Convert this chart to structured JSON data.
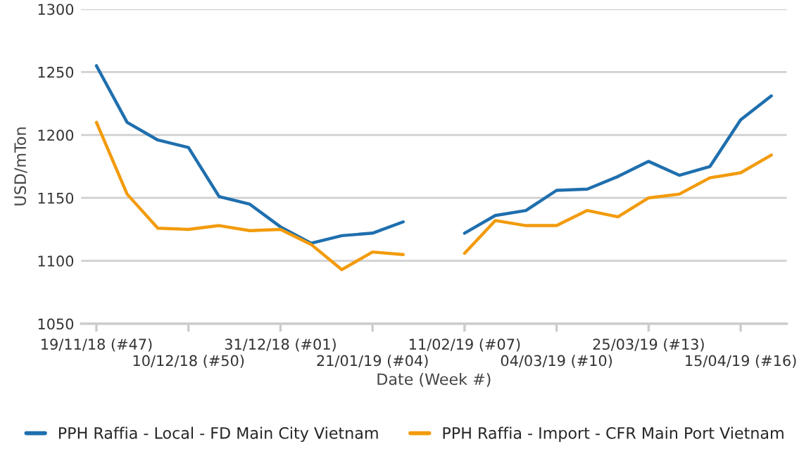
{
  "chart_data": {
    "type": "line",
    "xlabel": "Date (Week #)",
    "ylabel": "USD/mTon",
    "categories": [
      "19/11/18 (#47)",
      null,
      null,
      "10/12/18 (#50)",
      null,
      null,
      "31/12/18 (#01)",
      null,
      null,
      "21/01/19 (#04)",
      null,
      null,
      "11/02/19 (#07)",
      null,
      null,
      "04/03/19 (#10)",
      null,
      null,
      "25/03/19 (#13)",
      null,
      null,
      "15/04/19 (#16)",
      null
    ],
    "series": [
      {
        "name": "PPH Raffia - Local - FD Main City Vietnam",
        "color": "#1f6fae",
        "values": [
          1255,
          1210,
          1196,
          1190,
          1151,
          1145,
          1127,
          1114,
          1120,
          1122,
          1131,
          null,
          1122,
          1136,
          1140,
          1156,
          1157,
          1167,
          1179,
          1168,
          1175,
          1212,
          1231
        ]
      },
      {
        "name": "PPH Raffia - Import - CFR Main Port Vietnam",
        "color": "#f29b0c",
        "values": [
          1210,
          1153,
          1126,
          1125,
          1128,
          1124,
          1125,
          1113,
          1093,
          1107,
          1105,
          null,
          1106,
          1132,
          1128,
          1128,
          1140,
          1135,
          1150,
          1153,
          1166,
          1170,
          1184
        ]
      }
    ],
    "ylim": [
      1050,
      1300
    ],
    "yticks": [
      1050,
      1100,
      1150,
      1200,
      1250,
      1300
    ],
    "grid": "y",
    "legend": "bottom",
    "marker": "none",
    "line_style": "solid"
  }
}
